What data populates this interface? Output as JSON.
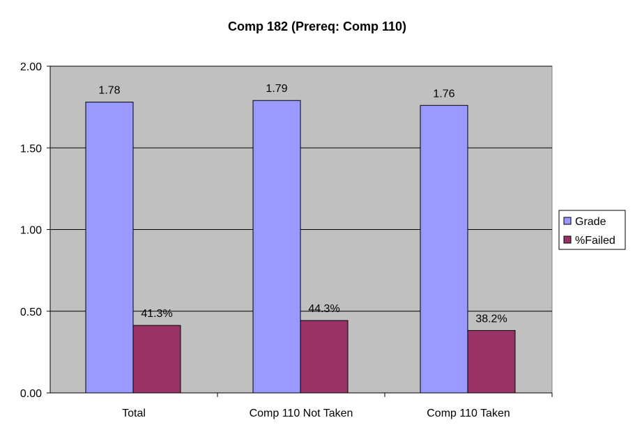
{
  "chart_data": {
    "type": "bar",
    "title": "Comp 182 (Prereq: Comp 110)",
    "xlabel": "",
    "ylabel": "",
    "ylim": [
      0,
      2
    ],
    "yticks": [
      0,
      0.5,
      1,
      1.5,
      2
    ],
    "ytick_labels": [
      "0.00",
      "0.50",
      "1.00",
      "1.50",
      "2.00"
    ],
    "categories": [
      "Total",
      "Comp 110 Not Taken",
      "Comp 110 Taken"
    ],
    "series": [
      {
        "name": "Grade",
        "color": "#9999FF",
        "values": [
          1.78,
          1.79,
          1.76
        ],
        "labels": [
          "1.78",
          "1.79",
          "1.76"
        ]
      },
      {
        "name": "%Failed",
        "color": "#993366",
        "values": [
          0.413,
          0.443,
          0.382
        ],
        "labels": [
          "41.3%",
          "44.3%",
          "38.2%"
        ]
      }
    ],
    "plot_background": "#C0C0C0",
    "grid": true,
    "legend_position": "right"
  }
}
